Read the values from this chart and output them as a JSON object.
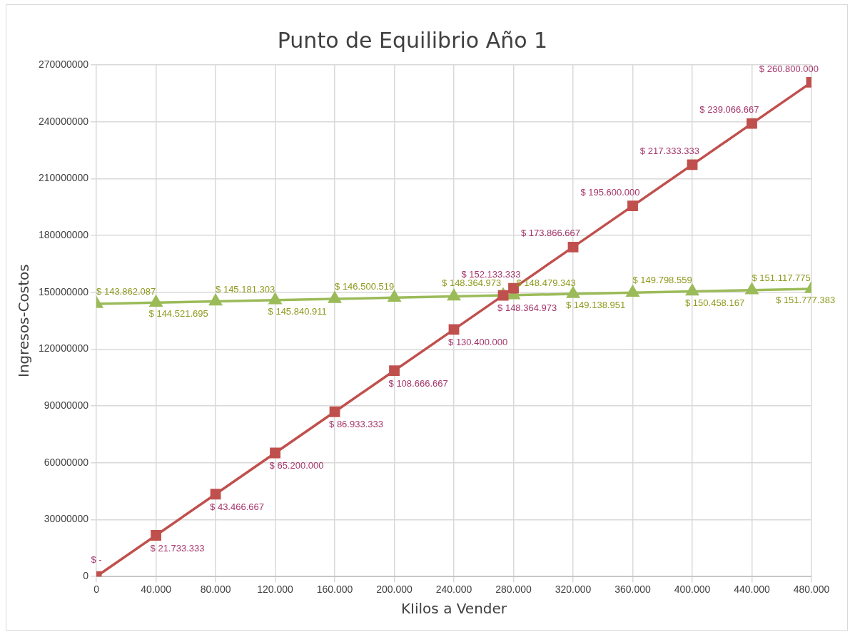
{
  "chart_data": {
    "type": "line",
    "title": "Punto de Equilibrio Año 1",
    "xlabel": "KIilos a Vender",
    "ylabel": "Ingresos-Costos",
    "xlim": [
      0,
      480000
    ],
    "xticks": [
      0,
      {
        "value": 40000,
        "label": "40.000"
      },
      {
        "value": 80000,
        "label": "80.000"
      },
      {
        "value": 120000,
        "label": "120.000"
      },
      {
        "value": 160000,
        "label": "160.000"
      },
      {
        "value": 200000,
        "label": "200.000"
      },
      {
        "value": 240000,
        "label": "240.000"
      },
      {
        "value": 280000,
        "label": "280.000"
      },
      {
        "value": 320000,
        "label": "320.000"
      },
      {
        "value": 360000,
        "label": "360.000"
      },
      {
        "value": 400000,
        "label": "400.000"
      },
      {
        "value": 440000,
        "label": "440.000"
      },
      {
        "value": 480000,
        "label": "480.000"
      }
    ],
    "ylim": [
      0,
      270000000
    ],
    "yticks": [
      0,
      30000000,
      60000000,
      90000000,
      120000000,
      150000000,
      180000000,
      210000000,
      240000000,
      270000000
    ],
    "grid": true,
    "legend": false,
    "line_style": "solid",
    "series": [
      {
        "color": "#c0504d",
        "marker": "square",
        "x": [
          0,
          40000,
          80000,
          120000,
          160000,
          200000,
          240000,
          273065,
          280000,
          320000,
          360000,
          400000,
          440000,
          480000
        ],
        "values": [
          0,
          21733333,
          43466667,
          65200000,
          86933333,
          108666667,
          130400000,
          148364973,
          152133333,
          173866667,
          195600000,
          217333333,
          239066667,
          260800000
        ],
        "value_labels": [
          "$ -",
          "$ 21.733.333",
          "$ 43.466.667",
          "$ 65.200.000",
          "$ 86.933.333",
          "$ 108.666.667",
          "$ 130.400.000",
          "$ 148.364.973",
          "$ 152.133.333",
          "$ 173.866.667",
          "$ 195.600.000",
          "$ 217.333.333",
          "$ 239.066.667",
          "$ 260.800.000"
        ]
      },
      {
        "color": "#9bbb59",
        "marker": "triangle",
        "x": [
          0,
          40000,
          80000,
          120000,
          160000,
          200000,
          240000,
          273065,
          280000,
          320000,
          360000,
          400000,
          440000,
          480000
        ],
        "values": [
          143862087,
          144521695,
          145181303,
          145840911,
          146500519,
          147200000,
          147800000,
          148364973,
          148479343,
          149138951,
          149798559,
          150458167,
          151117775,
          151777383
        ],
        "value_labels": [
          "$ 143.862.087",
          "$ 144.521.695",
          "$ 145.181.303",
          "$ 145.840.911",
          "$ 146.500.519",
          null,
          null,
          "$ 148.364.973",
          "$ 148.479.343",
          "$ 149.138.951",
          "$ 149.798.559",
          "$ 150.458.167",
          "$ 151.117.775",
          "$ 151.777.383"
        ]
      }
    ]
  }
}
